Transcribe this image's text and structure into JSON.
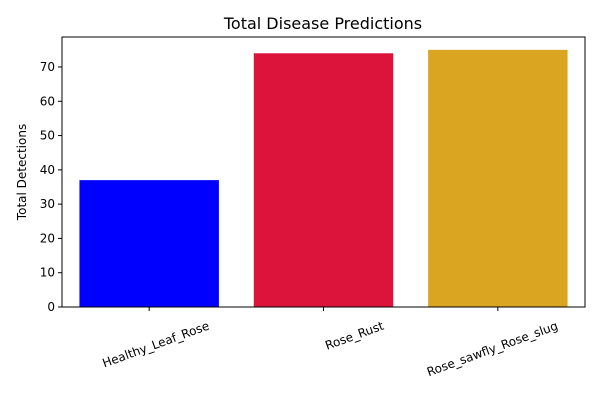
{
  "chart_data": {
    "type": "bar",
    "title": "Total Disease Predictions",
    "xlabel": "",
    "ylabel": "Total Detections",
    "categories": [
      "Healthy_Leaf_Rose",
      "Rose_Rust",
      "Rose_sawfly_Rose_slug"
    ],
    "values": [
      37,
      74,
      75
    ],
    "bar_colors": [
      "#0000ff",
      "#dc143c",
      "#daa520"
    ],
    "ylim": [
      0,
      78.75
    ],
    "yticks": [
      0,
      10,
      20,
      30,
      40,
      50,
      60,
      70
    ],
    "ytick_labels": [
      "0",
      "10",
      "20",
      "30",
      "40",
      "50",
      "60",
      "70"
    ],
    "grid": false,
    "legend": "none",
    "xtick_rotation_deg": -20
  }
}
